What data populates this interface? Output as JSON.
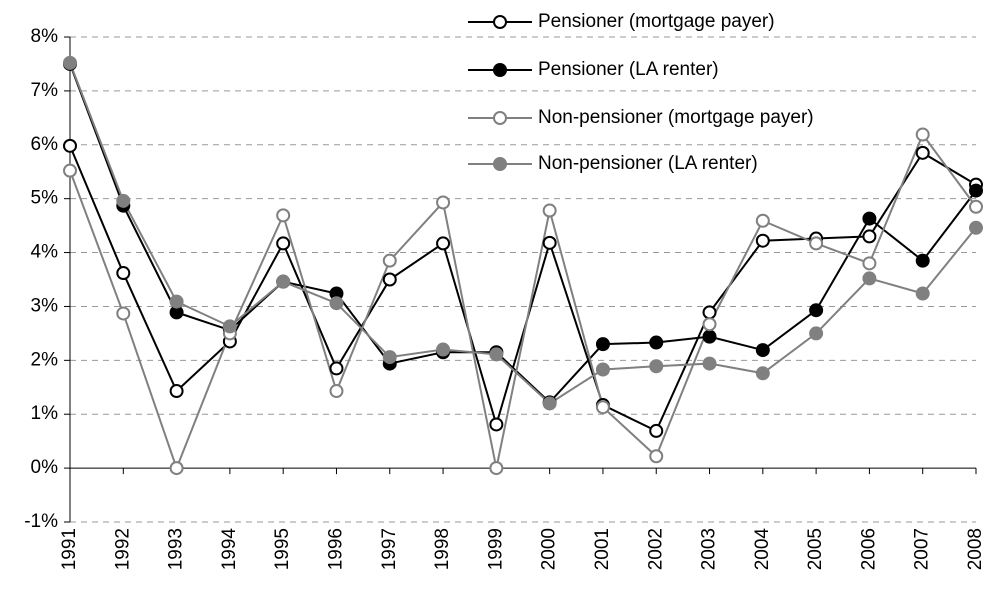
{
  "chart_data": {
    "type": "line",
    "categories": [
      "1991",
      "1992",
      "1993",
      "1994",
      "1995",
      "1996",
      "1997",
      "1998",
      "1999",
      "2000",
      "2001",
      "2002",
      "2003",
      "2004",
      "2005",
      "2006",
      "2007",
      "2008"
    ],
    "series": [
      {
        "name": "Pensioner (mortgage payer)",
        "color": "#000000",
        "filled": false,
        "values": [
          5.98,
          3.62,
          1.43,
          2.35,
          4.17,
          1.85,
          3.5,
          4.17,
          0.81,
          4.18,
          1.17,
          0.69,
          2.89,
          4.22,
          4.26,
          4.3,
          5.85,
          5.26
        ]
      },
      {
        "name": "Pensioner (LA renter)",
        "color": "#000000",
        "filled": true,
        "values": [
          7.5,
          4.87,
          2.89,
          2.56,
          3.46,
          3.24,
          1.94,
          2.15,
          2.15,
          1.22,
          2.3,
          2.33,
          2.44,
          2.19,
          2.93,
          4.63,
          3.85,
          5.15
        ]
      },
      {
        "name": "Non-pensioner (mortgage payer)",
        "color": "#808080",
        "filled": false,
        "values": [
          5.52,
          2.87,
          0,
          2.5,
          4.69,
          1.43,
          3.85,
          4.93,
          0,
          4.78,
          1.13,
          0.22,
          2.67,
          4.59,
          4.17,
          3.8,
          6.19,
          4.85
        ]
      },
      {
        "name": "Non-pensioner (LA renter)",
        "color": "#808080",
        "filled": true,
        "values": [
          7.52,
          4.96,
          3.09,
          2.63,
          3.46,
          3.06,
          2.06,
          2.2,
          2.11,
          1.2,
          1.83,
          1.89,
          1.94,
          1.76,
          2.5,
          3.52,
          3.24,
          4.46
        ]
      }
    ],
    "ylim": [
      -1,
      8
    ],
    "yticks": [
      {
        "value": -1,
        "label": "-1%"
      },
      {
        "value": 0,
        "label": "0%"
      },
      {
        "value": 1,
        "label": "1%"
      },
      {
        "value": 2,
        "label": "2%"
      },
      {
        "value": 3,
        "label": "3%"
      },
      {
        "value": 4,
        "label": "4%"
      },
      {
        "value": 5,
        "label": "5%"
      },
      {
        "value": 6,
        "label": "6%"
      },
      {
        "value": 7,
        "label": "7%"
      },
      {
        "value": 8,
        "label": "8%"
      }
    ],
    "grid": true,
    "legend": "top-right"
  }
}
